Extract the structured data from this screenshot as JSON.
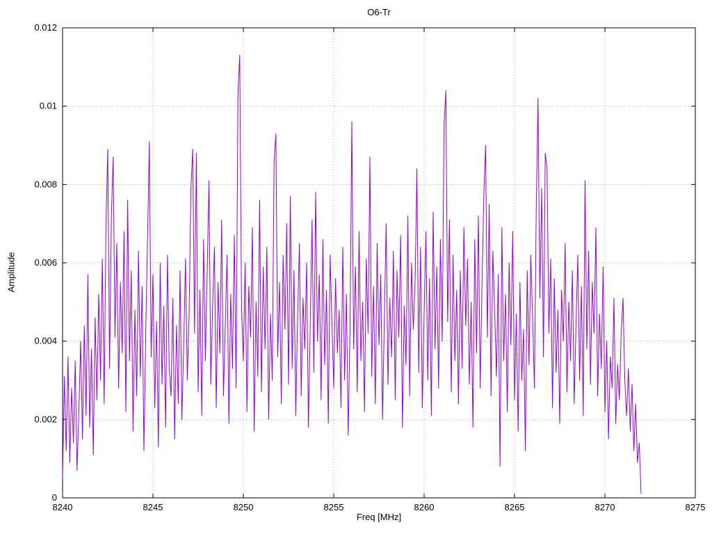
{
  "chart_data": {
    "type": "line",
    "title": "O6-Tr",
    "xlabel": "Freq [MHz]",
    "ylabel": "Amplitude",
    "xlim": [
      8240,
      8275
    ],
    "ylim": [
      0,
      0.012
    ],
    "x_ticks": [
      8240,
      8245,
      8250,
      8255,
      8260,
      8265,
      8270,
      8275
    ],
    "x_tick_labels": [
      "8240",
      "8245",
      "8250",
      "8255",
      "8260",
      "8265",
      "8270",
      "8275"
    ],
    "y_ticks": [
      0,
      0.002,
      0.004,
      0.006,
      0.008,
      0.01,
      0.012
    ],
    "y_tick_labels": [
      "0",
      "0.002",
      "0.004",
      "0.006",
      "0.008",
      "0.01",
      "0.012"
    ],
    "grid": "dotted",
    "legend": "none",
    "line_color": "#9400d3",
    "grid_color": "#a0b4a0",
    "x_start": 8240.0,
    "x_step": 0.1,
    "amplitude_scale": 0.0001,
    "amplitudes": [
      5,
      31,
      12,
      36,
      9,
      28,
      14,
      35,
      7,
      22,
      40,
      15,
      44,
      21,
      57,
      18,
      38,
      11,
      46,
      25,
      52,
      30,
      61,
      24,
      70,
      89,
      33,
      72,
      87,
      41,
      65,
      28,
      55,
      37,
      68,
      22,
      76,
      35,
      58,
      17,
      48,
      26,
      63,
      31,
      54,
      12,
      42,
      66,
      91,
      36,
      57,
      23,
      45,
      13,
      60,
      29,
      49,
      18,
      62,
      33,
      26,
      51,
      15,
      44,
      24,
      58,
      20,
      39,
      61,
      30,
      47,
      79,
      89,
      42,
      88,
      27,
      53,
      21,
      66,
      35,
      58,
      81,
      29,
      49,
      64,
      23,
      55,
      37,
      71,
      26,
      44,
      62,
      19,
      52,
      33,
      67,
      28,
      103,
      113,
      48,
      35,
      60,
      22,
      54,
      41,
      69,
      17,
      50,
      31,
      76,
      27,
      59,
      38,
      64,
      20,
      47,
      30,
      86,
      93,
      36,
      55,
      24,
      62,
      43,
      70,
      29,
      77,
      33,
      58,
      21,
      46,
      65,
      26,
      51,
      38,
      60,
      18,
      44,
      71,
      32,
      78,
      40,
      57,
      25,
      66,
      34,
      53,
      19,
      62,
      45,
      28,
      56,
      37,
      48,
      23,
      64,
      30,
      52,
      16,
      43,
      96,
      38,
      59,
      27,
      68,
      35,
      50,
      22,
      61,
      42,
      87,
      31,
      54,
      24,
      65,
      39,
      57,
      20,
      46,
      70,
      29,
      51,
      36,
      63,
      25,
      58,
      41,
      67,
      18,
      49,
      34,
      72,
      26,
      60,
      43,
      55,
      84,
      32,
      64,
      23,
      47,
      68,
      30,
      56,
      21,
      73,
      38,
      59,
      28,
      66,
      40,
      95,
      104,
      45,
      71,
      27,
      62,
      35,
      53,
      24,
      58,
      33,
      69,
      44,
      61,
      29,
      50,
      18,
      66,
      37,
      72,
      28,
      54,
      77,
      90,
      41,
      75,
      26,
      63,
      48,
      31,
      57,
      8,
      69,
      35,
      52,
      22,
      60,
      39,
      68,
      25,
      47,
      17,
      55,
      30,
      43,
      12,
      58,
      34,
      62,
      46,
      28,
      73,
      102,
      51,
      79,
      36,
      88,
      84,
      42,
      61,
      23,
      56,
      32,
      48,
      19,
      53,
      40,
      65,
      27,
      50,
      35,
      58,
      24,
      44,
      62,
      30,
      54,
      21,
      81,
      38,
      63,
      29,
      55,
      42,
      69,
      26,
      47,
      33,
      59,
      22,
      40,
      15,
      36,
      28,
      51,
      19,
      34,
      25,
      42,
      51,
      30,
      21,
      33,
      17,
      29,
      12,
      24,
      9,
      14,
      1
    ]
  }
}
